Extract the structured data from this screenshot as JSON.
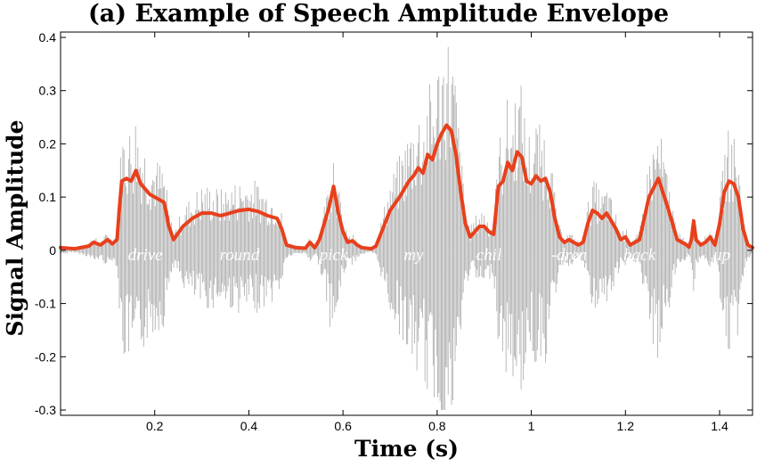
{
  "chart_data": {
    "type": "line",
    "title": "(a) Example of Speech Amplitude Envelope",
    "xlabel": "Time (s)",
    "ylabel": "Signal Amplitude",
    "xlim": [
      0,
      1.47
    ],
    "ylim": [
      -0.31,
      0.41
    ],
    "x_ticks": [
      0.2,
      0.4,
      0.6,
      0.8,
      1.0,
      1.2,
      1.4
    ],
    "x_tick_labels": [
      "0.2",
      "0.4",
      "0.6",
      "0.8",
      "1",
      "1.2",
      "1.4"
    ],
    "y_ticks": [
      -0.3,
      -0.2,
      -0.1,
      0,
      0.1,
      0.2,
      0.3,
      0.4
    ],
    "y_tick_labels": [
      "-0.3",
      "-0.2",
      "-0.1",
      "0",
      "0.1",
      "0.2",
      "0.3",
      "0.4"
    ],
    "grid": false,
    "words": [
      {
        "text": "drive",
        "x": 0.18
      },
      {
        "text": "round",
        "x": 0.38
      },
      {
        "text": "pick",
        "x": 0.58
      },
      {
        "text": "my",
        "x": 0.75
      },
      {
        "text": "chil",
        "x": 0.91
      },
      {
        "text": "-dren",
        "x": 1.08
      },
      {
        "text": "back",
        "x": 1.23
      },
      {
        "text": "up",
        "x": 1.405
      }
    ],
    "series": [
      {
        "kind": "envelope",
        "color": "#e8401c",
        "x": [
          0.0,
          0.03,
          0.06,
          0.07,
          0.085,
          0.1,
          0.11,
          0.12,
          0.125,
          0.13,
          0.14,
          0.15,
          0.16,
          0.17,
          0.18,
          0.19,
          0.2,
          0.21,
          0.22,
          0.23,
          0.24,
          0.26,
          0.28,
          0.3,
          0.32,
          0.34,
          0.36,
          0.38,
          0.4,
          0.42,
          0.44,
          0.46,
          0.47,
          0.48,
          0.5,
          0.52,
          0.53,
          0.54,
          0.55,
          0.56,
          0.57,
          0.58,
          0.59,
          0.6,
          0.61,
          0.62,
          0.63,
          0.64,
          0.65,
          0.66,
          0.67,
          0.68,
          0.7,
          0.72,
          0.74,
          0.75,
          0.76,
          0.77,
          0.78,
          0.79,
          0.8,
          0.81,
          0.82,
          0.83,
          0.84,
          0.85,
          0.86,
          0.87,
          0.88,
          0.89,
          0.9,
          0.91,
          0.92,
          0.93,
          0.94,
          0.95,
          0.96,
          0.97,
          0.98,
          0.99,
          1.0,
          1.01,
          1.02,
          1.03,
          1.04,
          1.05,
          1.06,
          1.07,
          1.08,
          1.09,
          1.1,
          1.11,
          1.12,
          1.13,
          1.14,
          1.15,
          1.16,
          1.17,
          1.18,
          1.19,
          1.2,
          1.21,
          1.22,
          1.23,
          1.24,
          1.25,
          1.27,
          1.29,
          1.31,
          1.32,
          1.33,
          1.335,
          1.34,
          1.345,
          1.35,
          1.36,
          1.37,
          1.38,
          1.39,
          1.4,
          1.41,
          1.42,
          1.43,
          1.44,
          1.45,
          1.46,
          1.47
        ],
        "y": [
          0.005,
          0.003,
          0.008,
          0.015,
          0.01,
          0.02,
          0.012,
          0.02,
          0.08,
          0.13,
          0.135,
          0.13,
          0.15,
          0.125,
          0.115,
          0.105,
          0.1,
          0.095,
          0.09,
          0.045,
          0.02,
          0.045,
          0.06,
          0.07,
          0.07,
          0.065,
          0.07,
          0.075,
          0.077,
          0.073,
          0.065,
          0.06,
          0.04,
          0.01,
          0.005,
          0.004,
          0.015,
          0.005,
          0.02,
          0.05,
          0.08,
          0.12,
          0.07,
          0.035,
          0.015,
          0.018,
          0.01,
          0.005,
          0.004,
          0.003,
          0.008,
          0.03,
          0.075,
          0.1,
          0.13,
          0.14,
          0.155,
          0.145,
          0.18,
          0.17,
          0.2,
          0.22,
          0.235,
          0.225,
          0.18,
          0.11,
          0.05,
          0.025,
          0.035,
          0.045,
          0.045,
          0.035,
          0.03,
          0.12,
          0.13,
          0.165,
          0.15,
          0.185,
          0.175,
          0.13,
          0.125,
          0.14,
          0.13,
          0.135,
          0.11,
          0.06,
          0.025,
          0.015,
          0.02,
          0.015,
          0.01,
          0.015,
          0.05,
          0.075,
          0.07,
          0.06,
          0.07,
          0.055,
          0.04,
          0.02,
          0.025,
          0.01,
          0.015,
          0.02,
          0.06,
          0.1,
          0.135,
          0.08,
          0.02,
          0.015,
          0.01,
          0.006,
          0.02,
          0.055,
          0.02,
          0.01,
          0.015,
          0.025,
          0.01,
          0.05,
          0.11,
          0.13,
          0.125,
          0.1,
          0.04,
          0.01,
          0.005
        ]
      }
    ]
  }
}
